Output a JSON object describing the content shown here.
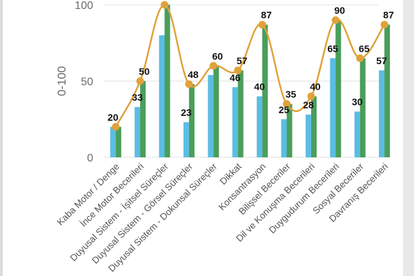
{
  "chart_data": {
    "type": "bar+line",
    "title": "",
    "xlabel": "",
    "ylabel": "0-100",
    "ylim": [
      0,
      100
    ],
    "yticks": [
      0,
      50,
      100
    ],
    "categories": [
      "Kaba Motor / Denge",
      "İnce Motor Becerileri",
      "Duyusal Sistem - İşitsel Süreçler",
      "Duyusal Sistem - Görsel Süreçler",
      "Duyusal Sistem - Dokunsal Süreçler",
      "Dikkat",
      "Konsantrasyon",
      "Bilişsel Beceriler",
      "Dil ve Konuşma Becerileri",
      "Duygudurum Becerileri",
      "Sosyal Beceriler",
      "Davranış Becerileri"
    ],
    "series": [
      {
        "type": "bar",
        "color": "#5bbde4",
        "values": [
          20,
          33,
          80,
          23,
          54,
          46,
          40,
          25,
          28,
          65,
          30,
          57
        ]
      },
      {
        "type": "bar",
        "color": "#4a9e5a",
        "values": [
          20,
          50,
          100,
          48,
          60,
          57,
          87,
          35,
          40,
          90,
          65,
          87
        ]
      },
      {
        "type": "line",
        "color": "#e0a23a",
        "values": [
          20,
          50,
          100,
          48,
          60,
          57,
          87,
          35,
          40,
          90,
          65,
          87
        ]
      }
    ],
    "data_labels": {
      "blue": [
        "20",
        "33",
        "",
        "23",
        "",
        "46",
        "40",
        "25",
        "28",
        "65",
        "30",
        "57"
      ],
      "green": [
        "",
        "50",
        "100",
        "48",
        "60",
        "57",
        "87",
        "35",
        "40",
        "90",
        "65",
        "87"
      ]
    },
    "grid": "horizontal"
  }
}
